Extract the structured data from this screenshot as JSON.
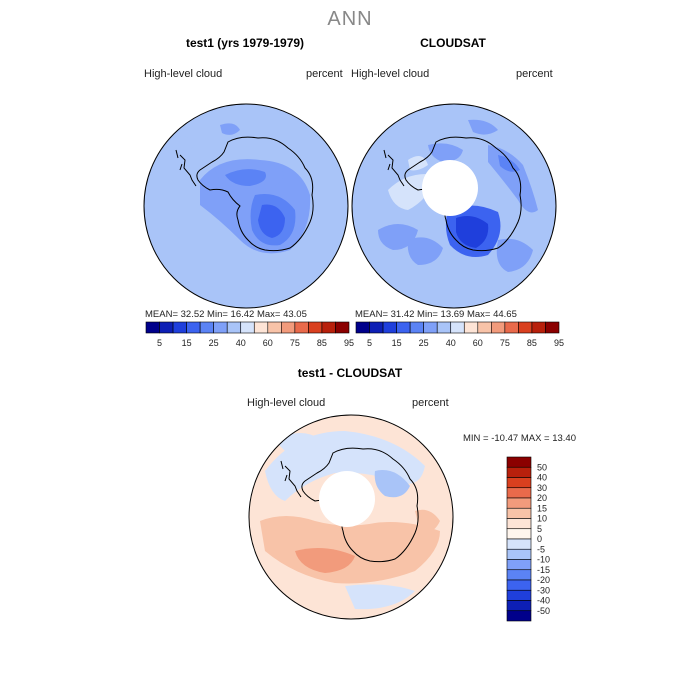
{
  "main_title": "ANN",
  "colors": {
    "land_outline": "#000000",
    "hole": "#ffffff",
    "ocean_model_bg": "#a9c4f8",
    "ocean_obs_bg": "#a9c4f8",
    "diff_bg": "#dde8ff"
  },
  "chart_data": [
    {
      "type": "heatmap",
      "projection": "south-polar-stereographic",
      "title": "test1 (yrs 1979-1979)",
      "variable_label": "High-level cloud",
      "units_label": "percent",
      "stats": {
        "mean": "32.52",
        "min": "16.42",
        "max": "43.05"
      },
      "stats_text": "MEAN=  32.52  Min=  16.42  Max=  43.05",
      "colorbar": {
        "orientation": "horizontal",
        "tick_labels": [
          "5",
          "15",
          "25",
          "40",
          "60",
          "75",
          "85",
          "95"
        ],
        "colors": [
          "#00008b",
          "#0d1fb5",
          "#1f3fdc",
          "#3c63f0",
          "#5b83f5",
          "#7fa0f8",
          "#a9c4f8",
          "#d5e3fb",
          "#fde4d6",
          "#f8c3a8",
          "#f29b7c",
          "#e96a4b",
          "#d9401f",
          "#b8200c",
          "#8b0000"
        ]
      }
    },
    {
      "type": "heatmap",
      "projection": "south-polar-stereographic",
      "title": "CLOUDSAT",
      "variable_label": "High-level cloud",
      "units_label": "percent",
      "stats": {
        "mean": "31.42",
        "min": "13.69",
        "max": "44.65"
      },
      "stats_text": "MEAN=  31.42  Min=  13.69  Max=  44.65",
      "colorbar": {
        "orientation": "horizontal",
        "tick_labels": [
          "5",
          "15",
          "25",
          "40",
          "60",
          "75",
          "85",
          "95"
        ],
        "colors": [
          "#00008b",
          "#0d1fb5",
          "#1f3fdc",
          "#3c63f0",
          "#5b83f5",
          "#7fa0f8",
          "#a9c4f8",
          "#d5e3fb",
          "#fde4d6",
          "#f8c3a8",
          "#f29b7c",
          "#e96a4b",
          "#d9401f",
          "#b8200c",
          "#8b0000"
        ]
      }
    },
    {
      "type": "heatmap",
      "projection": "south-polar-stereographic",
      "title": "test1 - CLOUDSAT",
      "variable_label": "High-level cloud",
      "units_label": "percent",
      "stats": {
        "min": "-10.47",
        "max": "13.40"
      },
      "stats_text": "MIN = -10.47  MAX =   13.40",
      "colorbar": {
        "orientation": "vertical",
        "tick_labels": [
          "50",
          "40",
          "30",
          "20",
          "15",
          "10",
          "5",
          "0",
          "-5",
          "-10",
          "-15",
          "-20",
          "-30",
          "-40",
          "-50"
        ],
        "colors": [
          "#8b0000",
          "#b8200c",
          "#d9401f",
          "#e96a4b",
          "#f29b7c",
          "#f8c3a8",
          "#fde4d6",
          "#fff6ee",
          "#d5e3fb",
          "#a9c4f8",
          "#7fa0f8",
          "#5b83f5",
          "#3c63f0",
          "#1f3fdc",
          "#0d1fb5",
          "#00008b"
        ]
      }
    }
  ]
}
